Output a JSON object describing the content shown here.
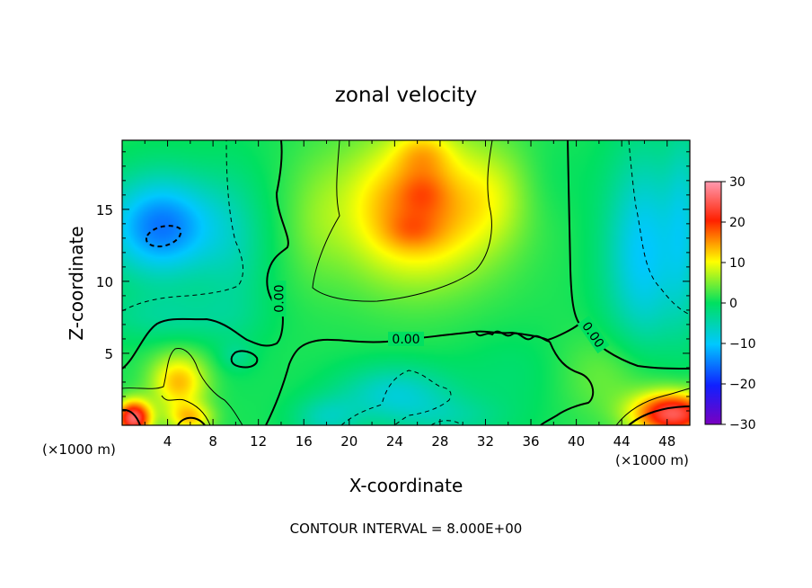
{
  "chart_data": {
    "type": "heatmap",
    "title": "zonal velocity",
    "xlabel": "X-coordinate",
    "ylabel": "Z-coordinate",
    "x_unit_label": "(×1000 m)",
    "footer": "CONTOUR INTERVAL = 8.000E+00",
    "x_range": [
      0,
      50
    ],
    "y_range": [
      0,
      19.8
    ],
    "x_ticks": [
      4,
      8,
      12,
      16,
      20,
      24,
      28,
      32,
      36,
      40,
      44,
      48
    ],
    "x_tick_labels": [
      "4",
      "8",
      "12",
      "16",
      "20",
      "24",
      "28",
      "32",
      "36",
      "40",
      "44",
      "48"
    ],
    "y_ticks": [
      5,
      10,
      15
    ],
    "y_tick_labels": [
      "5",
      "10",
      "15"
    ],
    "colorbar": {
      "range": [
        -30,
        30
      ],
      "ticks": [
        30,
        20,
        10,
        0,
        -10,
        -20,
        -30
      ],
      "tick_labels": [
        "30",
        "20",
        "10",
        "0",
        "−10",
        "−20",
        "−30"
      ],
      "colors": [
        "#7a00c0",
        "#1020ff",
        "#00c8ff",
        "#00e060",
        "#ffff00",
        "#ff2000",
        "#ff9ab0"
      ]
    },
    "contour_interval": 8.0,
    "contour_labels": [
      {
        "text": "0.00",
        "x": 13.8,
        "z": 8.8,
        "angle": -90
      },
      {
        "text": "0.00",
        "x": 25.0,
        "z": 6.0,
        "angle": 0
      },
      {
        "text": "0.00",
        "x": 41.5,
        "z": 6.3,
        "angle": 55
      }
    ],
    "field_features": [
      {
        "x": 3.5,
        "z": 13.8,
        "sx": 5.0,
        "sz": 3.5,
        "value": -16
      },
      {
        "x": 4.0,
        "z": 7.5,
        "sx": 6.5,
        "sz": 1.8,
        "value": -4
      },
      {
        "x": 10.0,
        "z": 12.0,
        "sx": 3.0,
        "sz": 6.0,
        "value": -4
      },
      {
        "x": 46.0,
        "z": 12.0,
        "sx": 3.5,
        "sz": 7.0,
        "value": -11
      },
      {
        "x": 49.5,
        "z": 14.0,
        "sx": 1.5,
        "sz": 7.0,
        "value": -6
      },
      {
        "x": 24.0,
        "z": 2.2,
        "sx": 5.0,
        "sz": 2.0,
        "value": -8
      },
      {
        "x": 18.0,
        "z": 0.5,
        "sx": 3.0,
        "sz": 1.5,
        "value": -6
      },
      {
        "x": 29.0,
        "z": 0.5,
        "sx": 5.0,
        "sz": 1.5,
        "value": -4
      },
      {
        "x": 35.0,
        "z": 3.5,
        "sx": 5.5,
        "sz": 3.0,
        "value": -2
      },
      {
        "x": 26.0,
        "z": 15.0,
        "sx": 7.0,
        "sz": 5.0,
        "value": 15
      },
      {
        "x": 25.5,
        "z": 13.5,
        "sx": 2.2,
        "sz": 1.2,
        "value": 3
      },
      {
        "x": 26.5,
        "z": 16.2,
        "sx": 2.0,
        "sz": 1.4,
        "value": 3
      },
      {
        "x": 26.5,
        "z": 19.0,
        "sx": 2.5,
        "sz": 1.6,
        "value": 5
      },
      {
        "x": 33.0,
        "z": 16.0,
        "sx": 3.0,
        "sz": 3.5,
        "value": 3
      },
      {
        "x": 17.0,
        "z": 14.0,
        "sx": 2.5,
        "sz": 4.5,
        "value": 2
      },
      {
        "x": 5.0,
        "z": 3.0,
        "sx": 2.5,
        "sz": 2.0,
        "value": 12
      },
      {
        "x": 6.0,
        "z": 0.5,
        "sx": 2.0,
        "sz": 1.0,
        "value": 10
      },
      {
        "x": 1.0,
        "z": 0.5,
        "sx": 1.5,
        "sz": 1.2,
        "value": 25
      },
      {
        "x": 48.5,
        "z": 0.8,
        "sx": 3.5,
        "sz": 1.5,
        "value": 24
      },
      {
        "x": 10.0,
        "z": 4.8,
        "sx": 1.5,
        "sz": 1.0,
        "value": -3
      },
      {
        "x": 43.0,
        "z": 3.5,
        "sx": 5.0,
        "sz": 3.0,
        "value": 4
      },
      {
        "x": 38.0,
        "z": 17.0,
        "sx": 3.0,
        "sz": 3.0,
        "value": -1
      }
    ]
  }
}
